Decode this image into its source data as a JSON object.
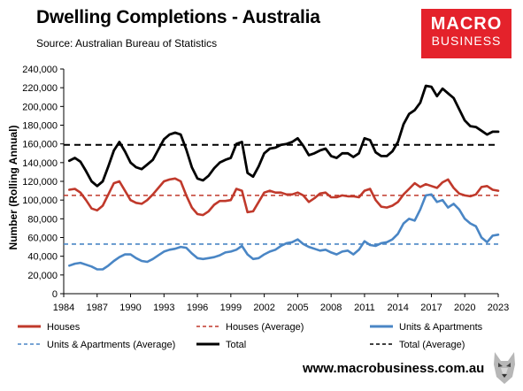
{
  "header": {
    "title": "Dwelling Completions - Australia",
    "subtitle": "Source: Australian Bureau of Statistics"
  },
  "logo": {
    "line1": "MACRO",
    "line2": "BUSINESS"
  },
  "footer": {
    "url": "www.macrobusiness.com.au"
  },
  "colors": {
    "houses": "#c0392b",
    "units": "#4a86c5",
    "total": "#000000",
    "logo_bg": "#e4222b"
  },
  "chart_data": {
    "type": "line",
    "ylabel": "Number (Rolling Annual)",
    "ylim": [
      0,
      240000
    ],
    "yticks": [
      0,
      20000,
      40000,
      60000,
      80000,
      100000,
      120000,
      140000,
      160000,
      180000,
      200000,
      220000,
      240000
    ],
    "ytick_labels": [
      "0",
      "20,000",
      "40,000",
      "60,000",
      "80,000",
      "100,000",
      "120,000",
      "140,000",
      "160,000",
      "180,000",
      "200,000",
      "220,000",
      "240,000"
    ],
    "xlim": [
      1984,
      2023
    ],
    "xticks": [
      "1984",
      "1987",
      "1990",
      "1993",
      "1996",
      "1999",
      "2002",
      "2005",
      "2008",
      "2011",
      "2014",
      "2017",
      "2020",
      "2023"
    ],
    "grid": false,
    "legend_position": "bottom",
    "x": [
      1984.5,
      1985,
      1985.5,
      1986,
      1986.5,
      1987,
      1987.5,
      1988,
      1988.5,
      1989,
      1989.5,
      1990,
      1990.5,
      1991,
      1991.5,
      1992,
      1992.5,
      1993,
      1993.5,
      1994,
      1994.5,
      1995,
      1995.5,
      1996,
      1996.5,
      1997,
      1997.5,
      1998,
      1998.5,
      1999,
      1999.5,
      2000,
      2000.5,
      2001,
      2001.5,
      2002,
      2002.5,
      2003,
      2003.5,
      2004,
      2004.5,
      2005,
      2005.5,
      2006,
      2006.5,
      2007,
      2007.5,
      2008,
      2008.5,
      2009,
      2009.5,
      2010,
      2010.5,
      2011,
      2011.5,
      2012,
      2012.5,
      2013,
      2013.5,
      2014,
      2014.5,
      2015,
      2015.5,
      2016,
      2016.5,
      2017,
      2017.5,
      2018,
      2018.5,
      2019,
      2019.5,
      2020,
      2020.5,
      2021,
      2021.5,
      2022,
      2022.5,
      2023
    ],
    "series": [
      {
        "name": "Houses",
        "key": "houses",
        "style": "solid",
        "values": [
          111000,
          112000,
          108000,
          100000,
          91000,
          89000,
          94000,
          106000,
          118000,
          120000,
          110000,
          100000,
          97000,
          96000,
          100000,
          106000,
          113000,
          120000,
          122000,
          123000,
          120000,
          105000,
          92000,
          85000,
          84000,
          88000,
          95000,
          99000,
          99000,
          100000,
          112000,
          110000,
          87000,
          88000,
          98000,
          108000,
          110000,
          108000,
          108000,
          106000,
          106000,
          108000,
          105000,
          98000,
          102000,
          107000,
          108000,
          103000,
          103000,
          105000,
          104000,
          104000,
          103000,
          110000,
          112000,
          100000,
          93000,
          92000,
          94000,
          98000,
          106000,
          112000,
          118000,
          114000,
          117000,
          115000,
          113000,
          119000,
          122000,
          113000,
          107000,
          105000,
          104000,
          106000,
          114000,
          115000,
          111000,
          110000
        ]
      },
      {
        "name": "Houses (Average)",
        "key": "houses_avg",
        "style": "dashed",
        "constant": 105000
      },
      {
        "name": "Units & Apartments",
        "key": "units",
        "style": "solid",
        "values": [
          30000,
          32000,
          33000,
          31000,
          29000,
          26000,
          26000,
          30000,
          35000,
          39000,
          42000,
          42000,
          38000,
          35000,
          34000,
          37000,
          41000,
          45000,
          47000,
          48000,
          50000,
          49000,
          43000,
          38000,
          37000,
          38000,
          39000,
          41000,
          44000,
          45000,
          47000,
          51000,
          42000,
          37000,
          38000,
          42000,
          45000,
          47000,
          51000,
          54000,
          55000,
          58000,
          53000,
          50000,
          48000,
          46000,
          47000,
          44000,
          42000,
          45000,
          46000,
          42000,
          47000,
          56000,
          52000,
          51000,
          54000,
          55000,
          58000,
          64000,
          75000,
          80000,
          78000,
          90000,
          105000,
          106000,
          98000,
          100000,
          92000,
          96000,
          90000,
          80000,
          75000,
          72000,
          60000,
          55000,
          62000,
          63000
        ]
      },
      {
        "name": "Units & Apartments (Average)",
        "key": "units_avg",
        "style": "dashed",
        "constant": 53000
      },
      {
        "name": "Total",
        "key": "total",
        "style": "solid",
        "values": [
          142000,
          145000,
          141000,
          131000,
          120000,
          115000,
          120000,
          136000,
          153000,
          162000,
          152000,
          140000,
          135000,
          133000,
          138000,
          143000,
          154000,
          165000,
          170000,
          172000,
          170000,
          154000,
          135000,
          123000,
          121000,
          126000,
          134000,
          140000,
          143000,
          145000,
          160000,
          162000,
          129000,
          125000,
          136000,
          150000,
          155000,
          156000,
          159000,
          160000,
          162000,
          166000,
          158000,
          148000,
          150000,
          153000,
          155000,
          147000,
          145000,
          150000,
          150000,
          146000,
          150000,
          166000,
          164000,
          151000,
          147000,
          147000,
          152000,
          162000,
          181000,
          192000,
          196000,
          204000,
          222000,
          221000,
          211000,
          219000,
          214000,
          209000,
          197000,
          185000,
          179000,
          178000,
          174000,
          170000,
          173000,
          173000
        ]
      },
      {
        "name": "Total (Average)",
        "key": "total_avg",
        "style": "dashed",
        "constant": 159000
      }
    ]
  }
}
